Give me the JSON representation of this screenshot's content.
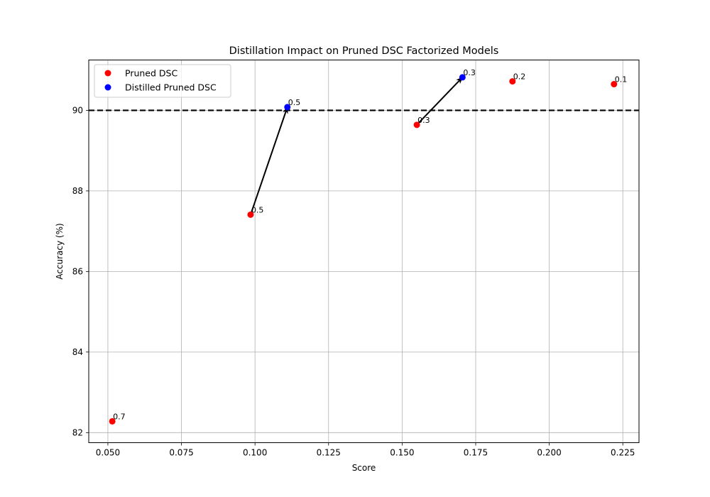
{
  "chart_data": {
    "type": "scatter",
    "title": "Distillation Impact on Pruned DSC Factorized Models",
    "xlabel": "Score",
    "ylabel": "Accuracy (%)",
    "xlim": [
      0.0435,
      0.2305
    ],
    "ylim": [
      81.75,
      91.25
    ],
    "xticks": [
      "0.050",
      "0.075",
      "0.100",
      "0.125",
      "0.150",
      "0.175",
      "0.200",
      "0.225"
    ],
    "xtick_values": [
      0.05,
      0.075,
      0.1,
      0.125,
      0.15,
      0.175,
      0.2,
      0.225
    ],
    "yticks": [
      "82",
      "84",
      "86",
      "88",
      "90"
    ],
    "ytick_values": [
      82,
      84,
      86,
      88,
      90
    ],
    "grid": true,
    "legend_position": "top-left",
    "reference_line": {
      "y": 90,
      "style": "dashed",
      "color": "#000000"
    },
    "series": [
      {
        "name": "Pruned DSC",
        "color": "#ff0000",
        "points": [
          {
            "x": 0.0515,
            "y": 82.28,
            "label": "0.7"
          },
          {
            "x": 0.0985,
            "y": 87.41,
            "label": "0.5"
          },
          {
            "x": 0.155,
            "y": 89.64,
            "label": "0.3"
          },
          {
            "x": 0.1875,
            "y": 90.72,
            "label": "0.2"
          },
          {
            "x": 0.222,
            "y": 90.65,
            "label": "0.1"
          }
        ]
      },
      {
        "name": "Distilled Pruned DSC",
        "color": "#0000ff",
        "points": [
          {
            "x": 0.111,
            "y": 90.08,
            "label": "0.5"
          },
          {
            "x": 0.1705,
            "y": 90.82,
            "label": "0.3"
          }
        ]
      }
    ],
    "arrows": [
      {
        "from": [
          0.0985,
          87.41
        ],
        "to": [
          0.111,
          90.08
        ]
      },
      {
        "from": [
          0.155,
          89.64
        ],
        "to": [
          0.1705,
          90.82
        ]
      }
    ]
  }
}
